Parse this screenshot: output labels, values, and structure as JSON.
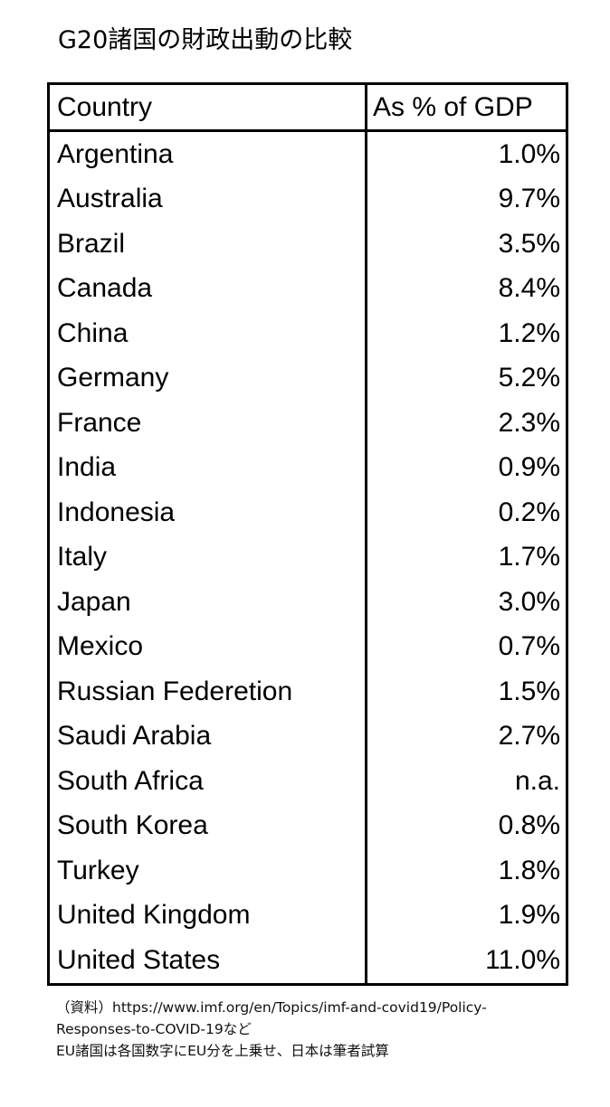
{
  "title": "G20諸国の財政出動の比較",
  "chart_data": {
    "type": "table",
    "columns": [
      "Country",
      "As % of GDP"
    ],
    "rows": [
      [
        "Argentina",
        "1.0%"
      ],
      [
        "Australia",
        "9.7%"
      ],
      [
        "Brazil",
        "3.5%"
      ],
      [
        "Canada",
        "8.4%"
      ],
      [
        "China",
        "1.2%"
      ],
      [
        "Germany",
        "5.2%"
      ],
      [
        "France",
        "2.3%"
      ],
      [
        "India",
        "0.9%"
      ],
      [
        "Indonesia",
        "0.2%"
      ],
      [
        "Italy",
        "1.7%"
      ],
      [
        "Japan",
        "3.0%"
      ],
      [
        "Mexico",
        "0.7%"
      ],
      [
        "Russian Federetion",
        "1.5%"
      ],
      [
        "Saudi Arabia",
        "2.7%"
      ],
      [
        "South Africa",
        "n.a."
      ],
      [
        "South Korea",
        "0.8%"
      ],
      [
        "Turkey",
        "1.8%"
      ],
      [
        "United Kingdom",
        "1.9%"
      ],
      [
        "United States",
        "11.0%"
      ]
    ]
  },
  "notes": [
    "（資料）https://www.imf.org/en/Topics/imf-and-covid19/Policy-",
    "Responses-to-COVID-19など",
    "EU諸国は各国数字にEU分を上乗せ、日本は筆者試算"
  ]
}
